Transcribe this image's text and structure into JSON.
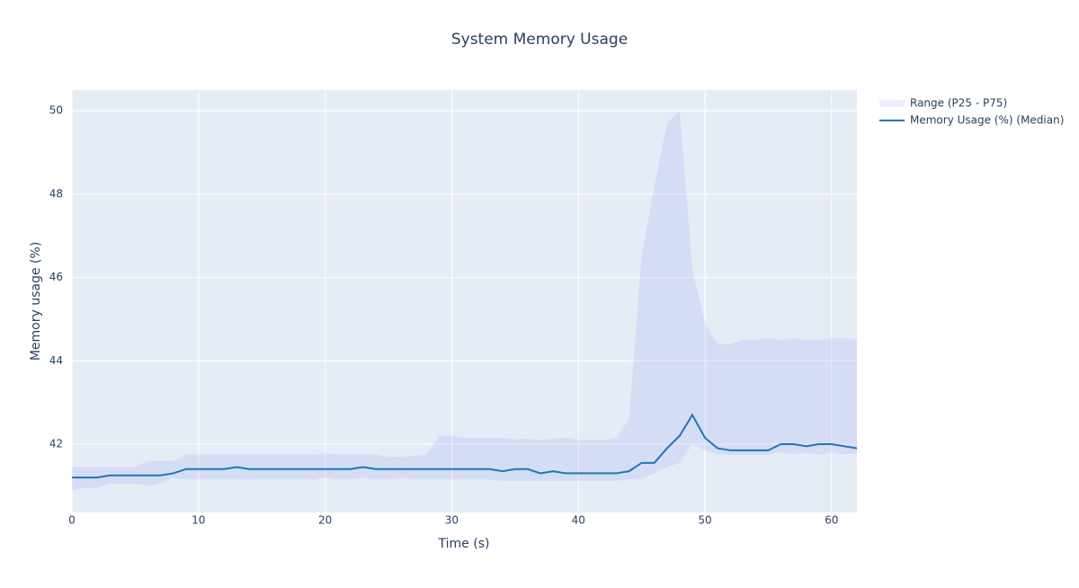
{
  "chart_data": {
    "type": "line",
    "title": "System Memory Usage",
    "x_label": "Time (s)",
    "y_label": "Memory usage (%)",
    "x": [
      0,
      1,
      2,
      3,
      4,
      5,
      6,
      7,
      8,
      9,
      10,
      11,
      12,
      13,
      14,
      15,
      16,
      17,
      18,
      19,
      20,
      21,
      22,
      23,
      24,
      25,
      26,
      27,
      28,
      29,
      30,
      31,
      32,
      33,
      34,
      35,
      36,
      37,
      38,
      39,
      40,
      41,
      42,
      43,
      44,
      45,
      46,
      47,
      48,
      49,
      50,
      51,
      52,
      53,
      54,
      55,
      56,
      57,
      58,
      59,
      60,
      61,
      62
    ],
    "series": [
      {
        "name": "Range (P25 - P75)",
        "color": "rgba(99,110,250,0.12)",
        "upper": [
          41.45,
          41.45,
          41.45,
          41.45,
          41.45,
          41.45,
          41.6,
          41.6,
          41.6,
          41.75,
          41.75,
          41.75,
          41.75,
          41.75,
          41.75,
          41.75,
          41.75,
          41.75,
          41.75,
          41.75,
          41.78,
          41.75,
          41.75,
          41.75,
          41.75,
          41.7,
          41.7,
          41.72,
          41.75,
          42.2,
          42.2,
          42.15,
          42.15,
          42.15,
          42.15,
          42.12,
          42.13,
          42.1,
          42.13,
          42.15,
          42.1,
          42.1,
          42.1,
          42.15,
          42.6,
          46.5,
          48.2,
          49.7,
          50.0,
          46.2,
          44.9,
          44.4,
          44.4,
          44.5,
          44.5,
          44.55,
          44.5,
          44.55,
          44.5,
          44.5,
          44.55,
          44.55,
          44.5
        ],
        "lower": [
          40.9,
          40.95,
          40.95,
          41.05,
          41.05,
          41.05,
          41.0,
          41.05,
          41.2,
          41.15,
          41.15,
          41.15,
          41.15,
          41.15,
          41.15,
          41.15,
          41.15,
          41.15,
          41.15,
          41.15,
          41.2,
          41.15,
          41.15,
          41.2,
          41.15,
          41.15,
          41.2,
          41.15,
          41.15,
          41.15,
          41.15,
          41.15,
          41.15,
          41.15,
          41.12,
          41.12,
          41.12,
          41.12,
          41.12,
          41.12,
          41.12,
          41.12,
          41.12,
          41.12,
          41.15,
          41.15,
          41.3,
          41.45,
          41.55,
          42.0,
          41.85,
          41.75,
          41.75,
          41.75,
          41.75,
          41.75,
          41.8,
          41.75,
          41.8,
          41.75,
          41.8,
          41.75,
          41.8
        ]
      },
      {
        "name": "Memory Usage (%) (Median)",
        "color": "#1f77b4",
        "values": [
          41.2,
          41.2,
          41.2,
          41.25,
          41.25,
          41.25,
          41.25,
          41.25,
          41.3,
          41.4,
          41.4,
          41.4,
          41.4,
          41.45,
          41.4,
          41.4,
          41.4,
          41.4,
          41.4,
          41.4,
          41.4,
          41.4,
          41.4,
          41.45,
          41.4,
          41.4,
          41.4,
          41.4,
          41.4,
          41.4,
          41.4,
          41.4,
          41.4,
          41.4,
          41.35,
          41.4,
          41.4,
          41.3,
          41.35,
          41.3,
          41.3,
          41.3,
          41.3,
          41.3,
          41.35,
          41.55,
          41.55,
          41.9,
          42.2,
          42.7,
          42.15,
          41.9,
          41.85,
          41.85,
          41.85,
          41.85,
          42.0,
          42.0,
          41.95,
          42.0,
          42.0,
          41.95,
          41.9
        ]
      }
    ],
    "xlim": [
      0,
      62
    ],
    "ylim": [
      40.36,
      50.5
    ],
    "xticks": [
      0,
      10,
      20,
      30,
      40,
      50,
      60
    ],
    "yticks": [
      42,
      44,
      46,
      48,
      50
    ],
    "grid": true,
    "legend": "right"
  }
}
